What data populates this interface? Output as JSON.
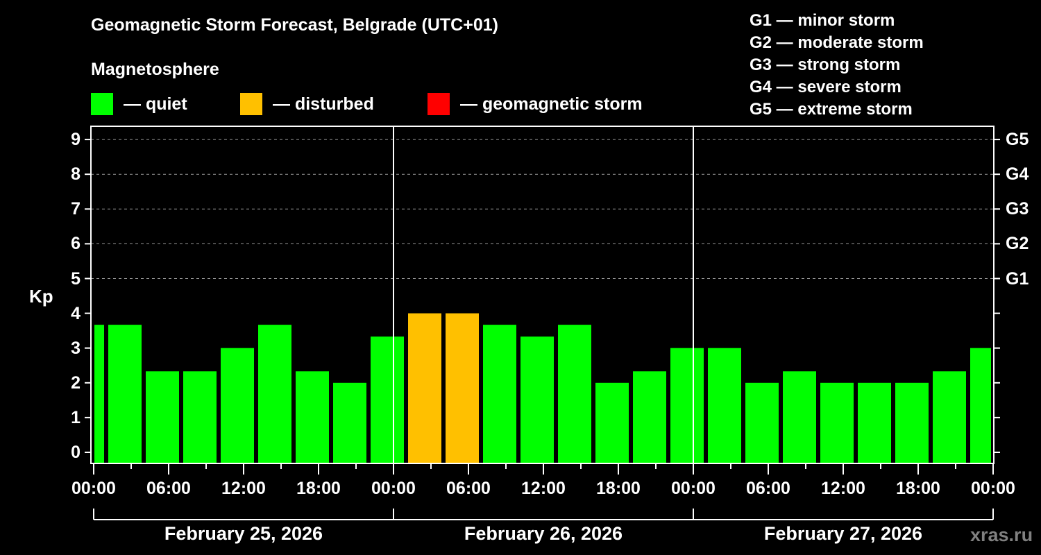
{
  "header": {
    "title": "Geomagnetic Storm Forecast, Belgrade (UTC+01)",
    "subtitle": "Magnetosphere"
  },
  "legend": [
    {
      "label": "— quiet",
      "color": "#00ff00"
    },
    {
      "label": "— disturbed",
      "color": "#ffc000"
    },
    {
      "label": "— geomagnetic storm",
      "color": "#ff0000"
    }
  ],
  "g_scale": [
    "G1 — minor storm",
    "G2 — moderate storm",
    "G3 — strong storm",
    "G4 — severe storm",
    "G5 — extreme storm"
  ],
  "axis": {
    "ylabel": "Kp",
    "yticks": [
      "0",
      "1",
      "2",
      "3",
      "4",
      "5",
      "6",
      "7",
      "8",
      "9"
    ],
    "gticks": [
      {
        "label": "G1",
        "kp": 5
      },
      {
        "label": "G2",
        "kp": 6
      },
      {
        "label": "G3",
        "kp": 7
      },
      {
        "label": "G4",
        "kp": 8
      },
      {
        "label": "G5",
        "kp": 9
      }
    ],
    "xticks": [
      "00:00",
      "06:00",
      "12:00",
      "18:00",
      "00:00",
      "06:00",
      "12:00",
      "18:00",
      "00:00",
      "06:00",
      "12:00",
      "18:00",
      "00:00"
    ],
    "dates": [
      "February 25, 2026",
      "February 26, 2026",
      "February 27, 2026"
    ]
  },
  "watermark": "xras.ru",
  "colors": {
    "quiet": "#00ff00",
    "disturbed": "#ffc000",
    "storm": "#ff0000",
    "axis": "#ffffff",
    "grid": "#9a9a9a",
    "background": "#000000"
  },
  "chart_data": {
    "type": "bar",
    "title": "Geomagnetic Storm Forecast, Belgrade (UTC+01)",
    "xlabel": "",
    "ylabel": "Kp",
    "ylim": [
      0,
      9
    ],
    "grid": "dashed horizontal at Kp 5-9",
    "legend_position": "top",
    "bin_hours": 3,
    "categories": [
      "Feb 25 00:00-01:00",
      "Feb 25 01:00-04:00",
      "Feb 25 04:00-07:00",
      "Feb 25 07:00-10:00",
      "Feb 25 10:00-13:00",
      "Feb 25 13:00-16:00",
      "Feb 25 16:00-19:00",
      "Feb 25 19:00-22:00",
      "Feb 25 22:00-01:00",
      "Feb 26 01:00-04:00",
      "Feb 26 04:00-07:00",
      "Feb 26 07:00-10:00",
      "Feb 26 10:00-13:00",
      "Feb 26 13:00-16:00",
      "Feb 26 16:00-19:00",
      "Feb 26 19:00-22:00",
      "Feb 26 22:00-01:00",
      "Feb 27 01:00-04:00",
      "Feb 27 04:00-07:00",
      "Feb 27 07:00-10:00",
      "Feb 27 10:00-13:00",
      "Feb 27 13:00-16:00",
      "Feb 27 16:00-19:00",
      "Feb 27 19:00-22:00",
      "Feb 27 22:00-24:00"
    ],
    "values": [
      3.67,
      3.67,
      2.33,
      2.33,
      3.0,
      3.67,
      2.33,
      2.0,
      3.33,
      4.0,
      4.0,
      3.67,
      3.33,
      3.67,
      2.0,
      2.33,
      3.0,
      3.0,
      2.0,
      2.33,
      2.0,
      2.0,
      2.0,
      2.33,
      3.0
    ],
    "status": [
      "quiet",
      "quiet",
      "quiet",
      "quiet",
      "quiet",
      "quiet",
      "quiet",
      "quiet",
      "quiet",
      "disturbed",
      "disturbed",
      "quiet",
      "quiet",
      "quiet",
      "quiet",
      "quiet",
      "quiet",
      "quiet",
      "quiet",
      "quiet",
      "quiet",
      "quiet",
      "quiet",
      "quiet",
      "quiet"
    ],
    "bar_start_hours": [
      0,
      1,
      4,
      7,
      10,
      13,
      16,
      19,
      22,
      25,
      28,
      31,
      34,
      37,
      40,
      43,
      46,
      49,
      52,
      55,
      58,
      61,
      64,
      67,
      70
    ],
    "bar_end_hours": [
      1,
      4,
      7,
      10,
      13,
      16,
      19,
      22,
      25,
      28,
      31,
      34,
      37,
      40,
      43,
      46,
      49,
      52,
      55,
      58,
      61,
      64,
      67,
      70,
      72
    ],
    "right_axis": {
      "G1": 5,
      "G2": 6,
      "G3": 7,
      "G4": 8,
      "G5": 9
    }
  }
}
